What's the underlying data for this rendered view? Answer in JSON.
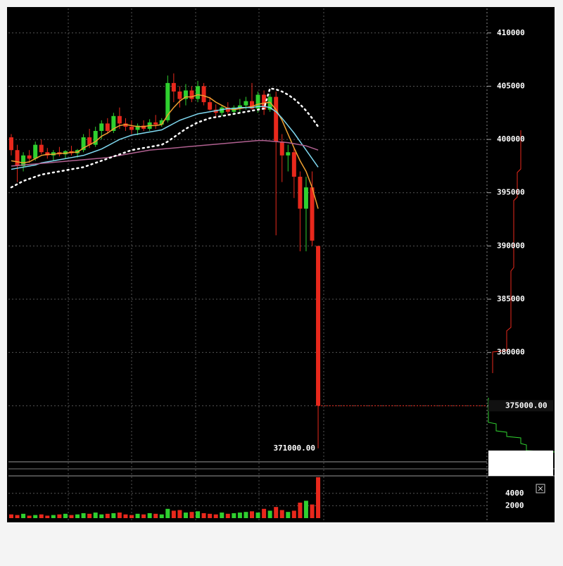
{
  "chart_data": {
    "type": "candlestick",
    "open": [
      400200,
      399000,
      397500,
      398500,
      398200,
      399500,
      398800,
      398500,
      398800,
      398600,
      398900,
      398700,
      399000,
      400200,
      399500,
      400800,
      401500,
      400800,
      402200,
      401500,
      401200,
      400900,
      401300,
      401000,
      401600,
      401400,
      401800,
      405300,
      404500,
      403800,
      404600,
      403800,
      405000,
      403500,
      402800,
      402500,
      403000,
      402600,
      403000,
      403200,
      403600,
      402900,
      404200,
      402800,
      404000,
      399800,
      398500,
      398800,
      396500,
      393500,
      395500,
      390000
    ],
    "high": [
      400500,
      399500,
      398800,
      399000,
      399800,
      400000,
      399200,
      399000,
      399300,
      399000,
      399400,
      399100,
      400500,
      401000,
      401200,
      401800,
      402000,
      402500,
      403000,
      402000,
      401800,
      401500,
      401800,
      401900,
      402300,
      402000,
      406000,
      406200,
      405000,
      405200,
      405000,
      405500,
      405300,
      404000,
      403300,
      403200,
      403500,
      403200,
      403800,
      404000,
      405300,
      404500,
      404600,
      404300,
      404500,
      400500,
      399500,
      399200,
      397000,
      396500,
      397000,
      390000
    ],
    "low": [
      398500,
      396000,
      397000,
      397800,
      398000,
      398600,
      398200,
      398000,
      398400,
      398200,
      398500,
      398300,
      398800,
      399200,
      399300,
      400000,
      400500,
      400600,
      401000,
      400800,
      400500,
      400400,
      400800,
      400800,
      401000,
      401200,
      401600,
      403500,
      403000,
      403200,
      403500,
      403500,
      403200,
      402700,
      402000,
      402200,
      402400,
      402300,
      402500,
      402800,
      402800,
      402500,
      402300,
      402600,
      391000,
      396000,
      397000,
      394500,
      389500,
      389500,
      390000,
      371000
    ],
    "close": [
      399000,
      397500,
      398500,
      398200,
      399500,
      398800,
      398500,
      398800,
      398600,
      398900,
      398700,
      399000,
      400200,
      399500,
      400800,
      401500,
      400800,
      402200,
      401500,
      401200,
      400900,
      401300,
      401000,
      401600,
      401400,
      401800,
      405300,
      404500,
      403800,
      404600,
      403800,
      405000,
      403500,
      402800,
      402500,
      403000,
      402600,
      403000,
      403200,
      403600,
      402900,
      404200,
      402800,
      404000,
      399800,
      398500,
      398800,
      396500,
      393500,
      395500,
      390500,
      375000
    ],
    "up_color": "#2fd02f",
    "down_color": "#e8281c",
    "series": [
      {
        "color": "#f0a030",
        "style": "solid",
        "values": [
          398000,
          397900,
          397800,
          397900,
          398200,
          398500,
          398600,
          398600,
          398700,
          398700,
          398800,
          398800,
          399200,
          399500,
          399800,
          400300,
          400600,
          401000,
          401300,
          401400,
          401300,
          401200,
          401200,
          401300,
          401300,
          401400,
          402300,
          403000,
          403600,
          404000,
          404000,
          404200,
          404100,
          403900,
          403500,
          403200,
          402900,
          402800,
          402900,
          403000,
          403100,
          403300,
          403400,
          403500,
          402800,
          401800,
          400500,
          399200,
          398000,
          397000,
          395500,
          393500
        ]
      },
      {
        "color": "#7fd8f0",
        "style": "solid",
        "values": [
          397200,
          397300,
          397400,
          397500,
          397600,
          397800,
          397900,
          398000,
          398100,
          398200,
          398300,
          398400,
          398500,
          398700,
          398900,
          399100,
          399400,
          399700,
          400000,
          400200,
          400400,
          400500,
          400600,
          400700,
          400800,
          400900,
          401200,
          401500,
          401800,
          402000,
          402200,
          402400,
          402500,
          402600,
          402700,
          402800,
          402900,
          402900,
          403000,
          403000,
          403000,
          403100,
          403100,
          403000,
          402600,
          402000,
          401300,
          400600,
          399800,
          399000,
          398200,
          397400
        ]
      },
      {
        "color": "#b06090",
        "style": "solid",
        "values": [
          397500,
          397550,
          397600,
          397650,
          397700,
          397750,
          397800,
          397850,
          397900,
          397950,
          398000,
          398050,
          398100,
          398150,
          398200,
          398250,
          398300,
          398400,
          398500,
          398600,
          398700,
          398800,
          398900,
          399000,
          399050,
          399100,
          399150,
          399200,
          399250,
          399300,
          399350,
          399400,
          399450,
          399500,
          399550,
          399600,
          399650,
          399700,
          399750,
          399800,
          399850,
          399900,
          399900,
          399850,
          399800,
          399750,
          399700,
          399600,
          399500,
          399400,
          399200,
          399000
        ]
      },
      {
        "color": "#ffffff",
        "style": "dotted",
        "values": [
          395500,
          395800,
          396100,
          396300,
          396500,
          396700,
          396800,
          396900,
          397000,
          397100,
          397200,
          397300,
          397400,
          397600,
          397800,
          398000,
          398200,
          398400,
          398600,
          398800,
          399000,
          399100,
          399200,
          399300,
          399400,
          399500,
          399800,
          400200,
          400600,
          401000,
          401300,
          401600,
          401800,
          402000,
          402100,
          402200,
          402300,
          402400,
          402500,
          402600,
          402700,
          402800,
          402900,
          404800,
          404700,
          404500,
          404200,
          403800,
          403300,
          402700,
          402000,
          401200
        ]
      }
    ],
    "ylim": [
      369800,
      412300
    ],
    "yticks": [
      410000,
      405000,
      400000,
      395000,
      390000,
      385000,
      380000,
      375000
    ],
    "grid": true,
    "last_price": {
      "value": 375000,
      "label": "375000.00"
    },
    "low_label": {
      "value": 371000,
      "label": "371000.00"
    },
    "volume": [
      600,
      500,
      700,
      400,
      500,
      600,
      400,
      500,
      600,
      700,
      500,
      600,
      800,
      700,
      900,
      600,
      700,
      800,
      900,
      600,
      500,
      700,
      600,
      800,
      700,
      600,
      1500,
      1200,
      1300,
      900,
      1000,
      1100,
      800,
      700,
      600,
      900,
      700,
      800,
      900,
      1000,
      1100,
      900,
      1500,
      1200,
      1800,
      1300,
      1000,
      1200,
      2500,
      2800,
      2200,
      6600
    ],
    "volume_ylim": [
      0,
      6700
    ],
    "volume_yticks": [
      4000,
      2000
    ]
  }
}
